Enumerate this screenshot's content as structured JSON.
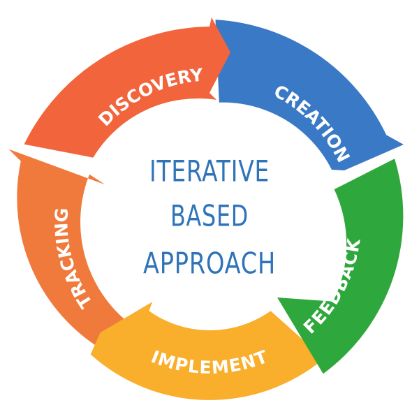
{
  "center_title": {
    "line1": "ITERATIVE",
    "line2": "BASED",
    "line3": "APPROACH"
  },
  "stages": [
    {
      "id": "discovery",
      "label": "DISCOVERY",
      "color": "#f2643c"
    },
    {
      "id": "creation",
      "label": "CREATION",
      "color": "#3a79c6"
    },
    {
      "id": "feedback",
      "label": "FEEDBACK",
      "color": "#2ea83c"
    },
    {
      "id": "implement",
      "label": "IMPLEMENT",
      "color": "#f9ae2c"
    },
    {
      "id": "tracking",
      "label": "TRACKING",
      "color": "#ef7a3c"
    }
  ]
}
